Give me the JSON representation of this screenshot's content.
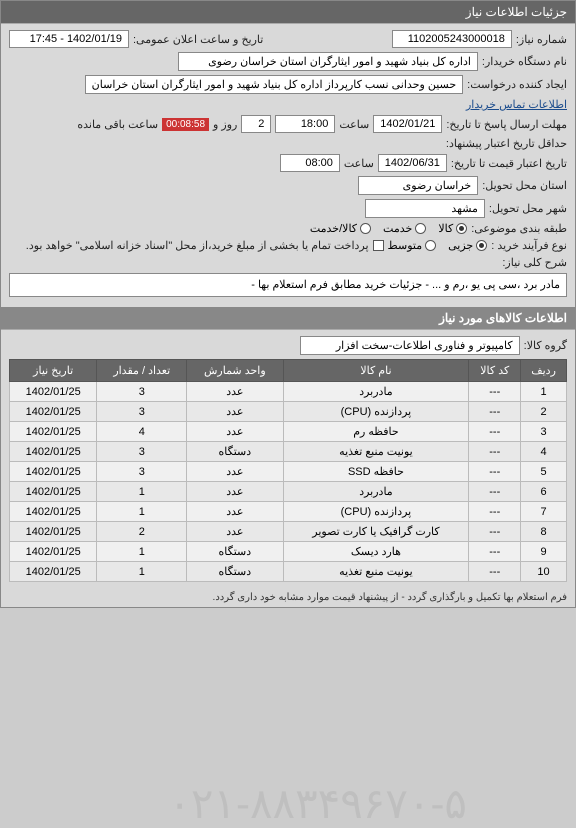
{
  "header": {
    "title": "جزئیات اطلاعات نیاز"
  },
  "fields": {
    "need_no_label": "شماره نیاز:",
    "need_no": "1102005243000018",
    "announce_label": "تاریخ و ساعت اعلان عمومی:",
    "announce": "1402/01/19 - 17:45",
    "buyer_org_label": "نام دستگاه خریدار:",
    "buyer_org": "اداره کل بنیاد شهید و امور ایثارگران استان خراسان رضوی",
    "creator_label": "ایجاد کننده درخواست:",
    "creator": "حسین وحدانی نسب کارپرداز اداره کل بنیاد شهید و امور ایثارگران استان خراسان",
    "contact_link": "اطلاعات تماس خریدار",
    "deadline_label": "حداقل تاریخ اعتبار پیشنهاد:",
    "deadline_date": "1402/01/21",
    "deadline_time_label": "ساعت",
    "deadline_time": "18:00",
    "days_label": "روز و",
    "days": "2",
    "remain_label": "ساعت باقی مانده",
    "timer": "00:08:58",
    "response_label": "مهلت ارسال پاسخ تا تاریخ:",
    "price_valid_label": "تاریخ اعتبار قیمت تا تاریخ:",
    "price_valid_date": "1402/06/31",
    "price_valid_time": "08:00",
    "province_label": "استان محل تحویل:",
    "province": "خراسان رضوی",
    "city_label": "شهر محل تحویل:",
    "city": "مشهد",
    "category_label": "طبقه بندی موضوعی:",
    "cat_goods": "کالا",
    "cat_service": "خدمت",
    "cat_both": "کالا/خدمت",
    "purchase_type_label": "نوع فرآیند خرید :",
    "pt_partial": "جزیی",
    "pt_medium": "متوسط",
    "payment_note": "پرداخت تمام یا بخشی از مبلغ خرید،از محل \"اسناد خزانه اسلامی\" خواهد بود.",
    "desc_label": "شرح کلی نیاز:",
    "desc": "مادر برد ،سی پی یو ،رم و ... - جزئیات خرید مطابق فرم استعلام بها -"
  },
  "goods_header": "اطلاعات کالاهای مورد نیاز",
  "group_label": "گروه کالا:",
  "group_value": "کامپیوتر و فناوری اطلاعات-سخت افزار",
  "table": {
    "columns": [
      "ردیف",
      "کد کالا",
      "نام کالا",
      "واحد شمارش",
      "تعداد / مقدار",
      "تاریخ نیاز"
    ],
    "rows": [
      [
        "1",
        "---",
        "مادربرد",
        "عدد",
        "3",
        "1402/01/25"
      ],
      [
        "2",
        "---",
        "پردازنده (CPU)",
        "عدد",
        "3",
        "1402/01/25"
      ],
      [
        "3",
        "---",
        "حافظه رم",
        "عدد",
        "4",
        "1402/01/25"
      ],
      [
        "4",
        "---",
        "یونیت منبع تغذیه",
        "دستگاه",
        "3",
        "1402/01/25"
      ],
      [
        "5",
        "---",
        "حافظه SSD",
        "عدد",
        "3",
        "1402/01/25"
      ],
      [
        "6",
        "---",
        "مادربرد",
        "عدد",
        "1",
        "1402/01/25"
      ],
      [
        "7",
        "---",
        "پردازنده (CPU)",
        "عدد",
        "1",
        "1402/01/25"
      ],
      [
        "8",
        "---",
        "کارت گرافیک یا کارت تصویر",
        "عدد",
        "2",
        "1402/01/25"
      ],
      [
        "9",
        "---",
        "هارد دیسک",
        "دستگاه",
        "1",
        "1402/01/25"
      ],
      [
        "10",
        "---",
        "یونیت منبع تغذیه",
        "دستگاه",
        "1",
        "1402/01/25"
      ]
    ]
  },
  "watermark": "۰۲۱-۸۸۳۴۹۶۷۰-۵",
  "footer": "فرم استعلام بها تکمیل و بارگذاری گردد - از پیشنهاد قیمت موارد مشابه خود داری گردد."
}
